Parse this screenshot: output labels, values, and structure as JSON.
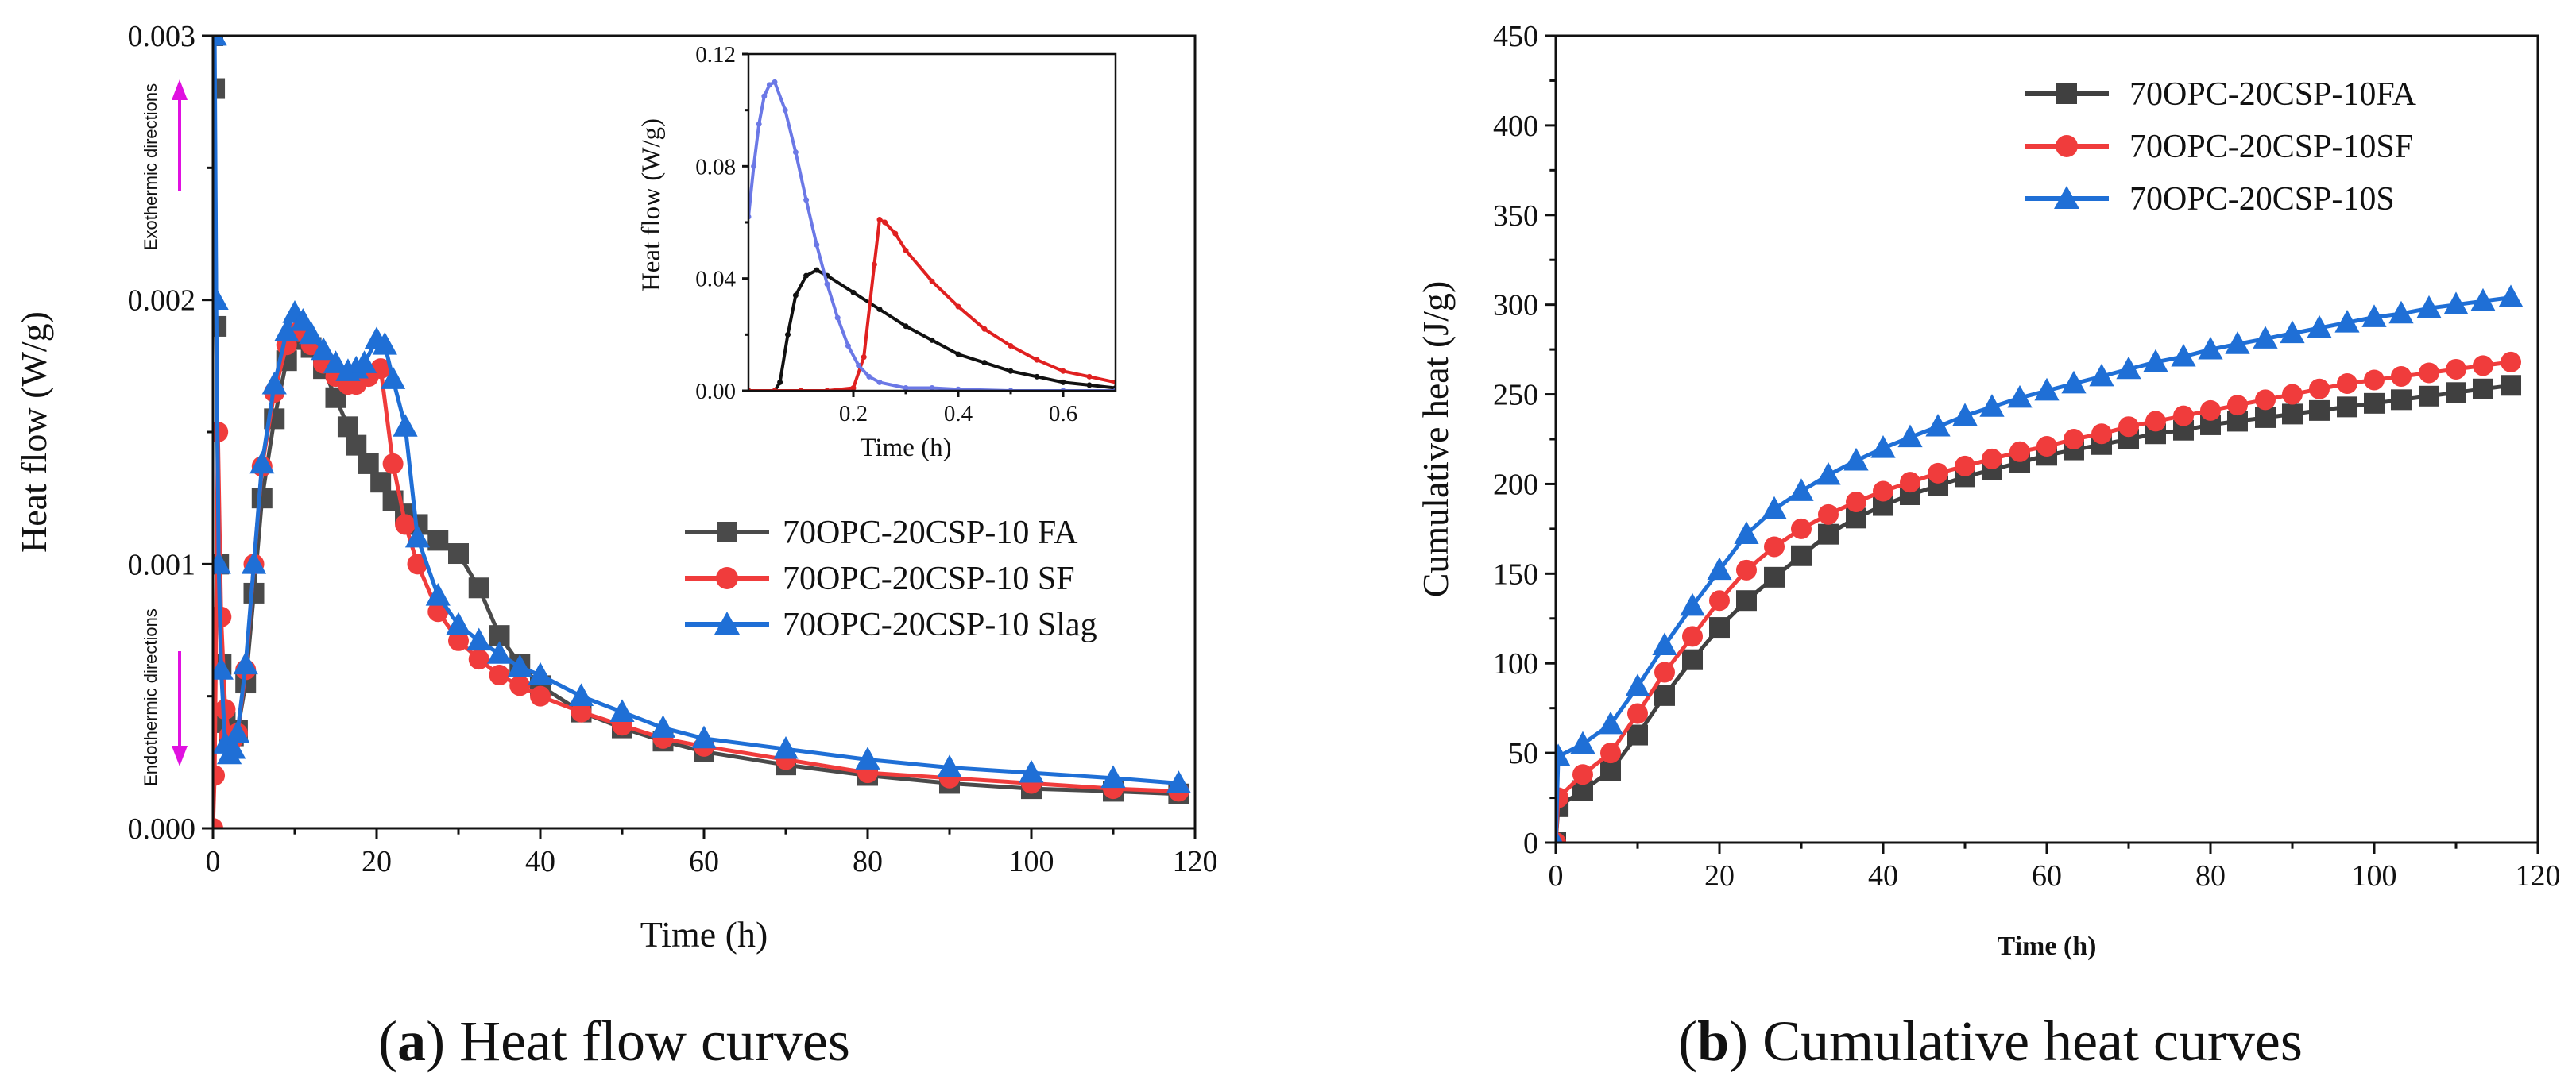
{
  "chart_data": [
    {
      "id": "a",
      "type": "line",
      "caption_letter": "a",
      "caption_text": " Heat flow curves",
      "xlabel": "Time (h)",
      "ylabel": "Heat flow (W/g)",
      "xlim": [
        0,
        120
      ],
      "ylim": [
        0,
        0.003
      ],
      "xticks": [
        "0",
        "20",
        "40",
        "60",
        "80",
        "100",
        "120"
      ],
      "yticks": [
        "0.000",
        "0.001",
        "0.002",
        "0.003"
      ],
      "annotations": [
        "Exothermic directions",
        "Endothermic directions"
      ],
      "legend_position": "center-right",
      "series": [
        {
          "name": "70OPC-20CSP-10 FA",
          "color": "#4a4a4a",
          "marker": "square",
          "x": [
            0,
            0.2,
            0.4,
            0.7,
            1.0,
            1.5,
            2.0,
            2.5,
            3,
            4,
            5,
            6,
            7.5,
            9,
            10.5,
            12,
            13.5,
            15,
            16.5,
            17.5,
            19,
            20.5,
            22,
            23.5,
            25,
            27.5,
            30,
            32.5,
            35,
            37.5,
            40,
            45,
            50,
            55,
            60,
            70,
            80,
            90,
            100,
            110,
            118
          ],
          "y": [
            0.003,
            0.0028,
            0.0019,
            0.001,
            0.00062,
            0.0004,
            0.00035,
            0.00035,
            0.00037,
            0.00055,
            0.00089,
            0.00125,
            0.00155,
            0.00177,
            0.00185,
            0.00182,
            0.00174,
            0.00163,
            0.00152,
            0.00145,
            0.00138,
            0.00131,
            0.00124,
            0.00119,
            0.00115,
            0.00109,
            0.00104,
            0.00091,
            0.00073,
            0.00062,
            0.00054,
            0.00044,
            0.00038,
            0.00033,
            0.00029,
            0.00024,
            0.0002,
            0.00017,
            0.00015,
            0.00014,
            0.00013
          ]
        },
        {
          "name": "70OPC-20CSP-10 SF",
          "color": "#f03c3c",
          "marker": "circle",
          "x": [
            0,
            0.2,
            0.4,
            0.6,
            1.0,
            1.5,
            2.0,
            2.5,
            3,
            4,
            5,
            6,
            7.5,
            9,
            10.5,
            12,
            13.5,
            15,
            16.5,
            17.5,
            19,
            20.5,
            22,
            23.5,
            25,
            27.5,
            30,
            32.5,
            35,
            37.5,
            40,
            45,
            50,
            55,
            60,
            70,
            80,
            90,
            100,
            110,
            118
          ],
          "y": [
            0.0,
            0.0002,
            0.0008,
            0.0015,
            0.0008,
            0.00045,
            0.00035,
            0.00034,
            0.00036,
            0.0006,
            0.001,
            0.00137,
            0.00165,
            0.00183,
            0.00188,
            0.00183,
            0.00176,
            0.00171,
            0.00168,
            0.00168,
            0.00171,
            0.00174,
            0.00138,
            0.00115,
            0.001,
            0.00082,
            0.00071,
            0.00064,
            0.00058,
            0.00054,
            0.0005,
            0.00044,
            0.00039,
            0.00034,
            0.00031,
            0.00026,
            0.00021,
            0.00019,
            0.00017,
            0.00015,
            0.00014
          ]
        },
        {
          "name": "70OPC-20CSP-10 Slag",
          "color": "#1f6fd6",
          "marker": "triangle",
          "x": [
            0,
            0.2,
            0.4,
            0.7,
            1.0,
            1.5,
            2.0,
            2.5,
            3,
            4,
            5,
            6,
            7.5,
            9,
            10,
            11,
            12,
            13.5,
            15,
            16.5,
            17.5,
            18.5,
            20,
            21,
            22,
            23.5,
            25,
            27.5,
            30,
            32.5,
            35,
            37.5,
            40,
            45,
            50,
            55,
            60,
            70,
            80,
            90,
            100,
            110,
            118
          ],
          "y": [
            0.003,
            0.003,
            0.002,
            0.001,
            0.0006,
            0.00032,
            0.00028,
            0.0003,
            0.00036,
            0.00062,
            0.001,
            0.00138,
            0.00168,
            0.00188,
            0.00195,
            0.00192,
            0.00187,
            0.00181,
            0.00176,
            0.00173,
            0.00174,
            0.00176,
            0.00185,
            0.00183,
            0.0017,
            0.00152,
            0.0011,
            0.00088,
            0.00077,
            0.00071,
            0.00066,
            0.00061,
            0.00058,
            0.0005,
            0.00044,
            0.00038,
            0.00034,
            0.0003,
            0.00026,
            0.00023,
            0.00021,
            0.00019,
            0.00017
          ]
        }
      ]
    },
    {
      "id": "a-inset",
      "type": "line",
      "xlabel": "Time (h)",
      "ylabel": "Heat flow (W/g)",
      "xlim": [
        0,
        0.7
      ],
      "ylim": [
        0,
        0.12
      ],
      "xticks": [
        "0.2",
        "0.4",
        "0.6"
      ],
      "yticks": [
        "0.00",
        "0.04",
        "0.08",
        "0.12"
      ],
      "series": [
        {
          "color": "#111111",
          "x": [
            0,
            0.05,
            0.06,
            0.075,
            0.09,
            0.11,
            0.13,
            0.15,
            0.2,
            0.25,
            0.3,
            0.35,
            0.4,
            0.45,
            0.5,
            0.55,
            0.6,
            0.65,
            0.7
          ],
          "y": [
            0.0,
            0.0,
            0.003,
            0.02,
            0.034,
            0.041,
            0.043,
            0.041,
            0.035,
            0.029,
            0.023,
            0.018,
            0.013,
            0.01,
            0.007,
            0.005,
            0.003,
            0.002,
            0.001
          ]
        },
        {
          "color": "#e02020",
          "x": [
            0,
            0.05,
            0.1,
            0.15,
            0.2,
            0.22,
            0.24,
            0.25,
            0.26,
            0.28,
            0.3,
            0.35,
            0.4,
            0.45,
            0.5,
            0.55,
            0.6,
            0.65,
            0.7
          ],
          "y": [
            0.0,
            0.0,
            0.0,
            0.0,
            0.001,
            0.012,
            0.045,
            0.061,
            0.06,
            0.056,
            0.05,
            0.039,
            0.03,
            0.022,
            0.016,
            0.011,
            0.007,
            0.005,
            0.003
          ]
        },
        {
          "color": "#6b78e6",
          "x": [
            0.0,
            0.01,
            0.02,
            0.03,
            0.04,
            0.05,
            0.07,
            0.09,
            0.11,
            0.13,
            0.15,
            0.17,
            0.19,
            0.21,
            0.23,
            0.25,
            0.3,
            0.35,
            0.4,
            0.5,
            0.6,
            0.7
          ],
          "y": [
            0.062,
            0.08,
            0.095,
            0.105,
            0.109,
            0.11,
            0.1,
            0.085,
            0.068,
            0.052,
            0.038,
            0.026,
            0.016,
            0.009,
            0.005,
            0.003,
            0.001,
            0.001,
            0.0005,
            0.0,
            0.0,
            0.0
          ]
        }
      ]
    },
    {
      "id": "b",
      "type": "line",
      "caption_letter": "b",
      "caption_text": " Cumulative heat curves",
      "xlabel": "Time (h)",
      "ylabel": "Cumulative heat (J/g)",
      "xlim": [
        0,
        120
      ],
      "ylim": [
        0,
        450
      ],
      "xticks": [
        "0",
        "20",
        "40",
        "60",
        "80",
        "100",
        "120"
      ],
      "yticks": [
        "0",
        "50",
        "100",
        "150",
        "200",
        "250",
        "300",
        "350",
        "400",
        "450"
      ],
      "legend_position": "top-left",
      "series": [
        {
          "name": "70OPC-20CSP-10FA",
          "color": "#404040",
          "marker": "square",
          "x": [
            0,
            0.3,
            3.3,
            6.7,
            10,
            13.3,
            16.7,
            20,
            23.3,
            26.7,
            30,
            33.3,
            36.7,
            40,
            43.3,
            46.7,
            50,
            53.3,
            56.7,
            60,
            63.3,
            66.7,
            70,
            73.3,
            76.7,
            80,
            83.3,
            86.7,
            90,
            93.3,
            96.7,
            100,
            103.3,
            106.7,
            110,
            113.3,
            116.7
          ],
          "y": [
            0,
            20,
            29,
            40,
            60,
            82,
            102,
            120,
            135,
            148,
            160,
            172,
            181,
            188,
            194,
            199,
            204,
            208,
            212,
            216,
            219,
            222,
            225,
            228,
            230,
            233,
            235,
            237,
            239,
            241,
            243,
            245,
            247,
            249,
            251,
            253,
            255
          ]
        },
        {
          "name": "70OPC-20CSP-10SF",
          "color": "#f03c3c",
          "marker": "circle",
          "x": [
            0,
            0.3,
            3.3,
            6.7,
            10,
            13.3,
            16.7,
            20,
            23.3,
            26.7,
            30,
            33.3,
            36.7,
            40,
            43.3,
            46.7,
            50,
            53.3,
            56.7,
            60,
            63.3,
            66.7,
            70,
            73.3,
            76.7,
            80,
            83.3,
            86.7,
            90,
            93.3,
            96.7,
            100,
            103.3,
            106.7,
            110,
            113.3,
            116.7
          ],
          "y": [
            0,
            25,
            38,
            50,
            72,
            95,
            115,
            135,
            152,
            165,
            175,
            183,
            190,
            196,
            201,
            206,
            210,
            214,
            218,
            221,
            225,
            228,
            232,
            235,
            238,
            241,
            244,
            247,
            250,
            253,
            256,
            258,
            260,
            262,
            264,
            266,
            268
          ]
        },
        {
          "name": "70OPC-20CSP-10S",
          "color": "#1f6fd6",
          "marker": "triangle",
          "x": [
            0,
            0.3,
            3.3,
            6.7,
            10,
            13.3,
            16.7,
            20,
            23.3,
            26.7,
            30,
            33.3,
            36.7,
            40,
            43.3,
            46.7,
            50,
            53.3,
            56.7,
            60,
            63.3,
            66.7,
            70,
            73.3,
            76.7,
            80,
            83.3,
            86.7,
            90,
            93.3,
            96.7,
            100,
            103.3,
            106.7,
            110,
            113.3,
            116.7
          ],
          "y": [
            0,
            48,
            55,
            66,
            87,
            110,
            132,
            152,
            172,
            186,
            196,
            205,
            213,
            220,
            226,
            232,
            238,
            243,
            248,
            252,
            256,
            260,
            264,
            268,
            271,
            275,
            278,
            281,
            284,
            287,
            290,
            293,
            295,
            298,
            300,
            302,
            304
          ]
        }
      ]
    }
  ]
}
